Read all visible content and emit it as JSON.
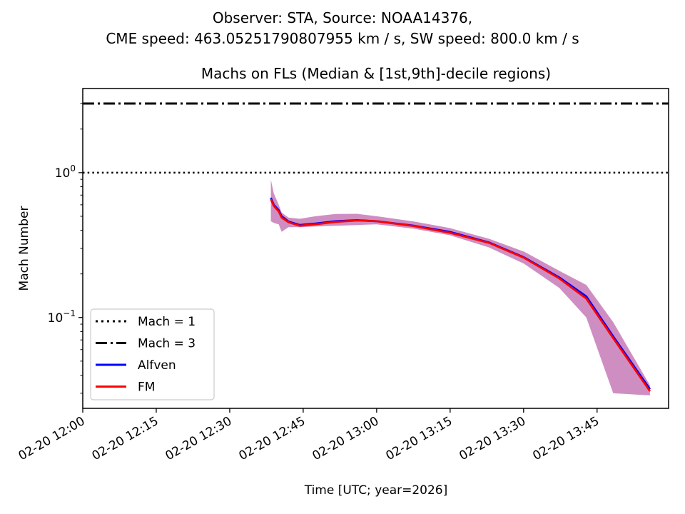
{
  "chart_data": {
    "type": "line",
    "suptitle_lines": [
      "Observer: STA, Source: NOAA14376,",
      "CME speed: 463.05251790807955 km / s, SW speed: 800.0 km / s"
    ],
    "title": "Machs on FLs (Median & [1st,9th]-decile regions)",
    "xlabel": "Time [UTC; year=2026]",
    "ylabel": "Mach Number",
    "yscale": "log",
    "xlim_minutes_after_1200": [
      0,
      119.6
    ],
    "ylim": [
      0.0236,
      3.81
    ],
    "x_ticks": [
      {
        "minutes": 0,
        "label": "02-20 12:00"
      },
      {
        "minutes": 15,
        "label": "02-20 12:15"
      },
      {
        "minutes": 30,
        "label": "02-20 12:30"
      },
      {
        "minutes": 45,
        "label": "02-20 12:45"
      },
      {
        "minutes": 60,
        "label": "02-20 13:00"
      },
      {
        "minutes": 75,
        "label": "02-20 13:15"
      },
      {
        "minutes": 90,
        "label": "02-20 13:30"
      },
      {
        "minutes": 105,
        "label": "02-20 13:45"
      }
    ],
    "y_ticks": [
      {
        "value": 1,
        "base": "10",
        "exp": "0"
      },
      {
        "value": 0.1,
        "base": "10",
        "exp": "−1"
      }
    ],
    "reference_lines": [
      {
        "name": "Mach = 1",
        "value": 1,
        "style": "dotted",
        "color": "#000000"
      },
      {
        "name": "Mach = 3",
        "value": 3,
        "style": "dashdot",
        "color": "#000000"
      }
    ],
    "x_minutes": [
      38.4,
      39.0,
      40.0,
      40.6,
      42.0,
      44.3,
      47.5,
      51.6,
      56.0,
      60.0,
      67.6,
      74.9,
      82.9,
      90.1,
      97.3,
      102.8,
      108.3,
      115.8
    ],
    "series": [
      {
        "name": "Alfven",
        "color": "#0000ff",
        "median": [
          0.67,
          0.6,
          0.55,
          0.5,
          0.46,
          0.435,
          0.445,
          0.462,
          0.47,
          0.462,
          0.43,
          0.39,
          0.33,
          0.26,
          0.189,
          0.14,
          0.074,
          0.032
        ]
      },
      {
        "name": "FM",
        "color": "#ff0000",
        "median": [
          0.657,
          0.59,
          0.54,
          0.49,
          0.455,
          0.43,
          0.44,
          0.457,
          0.468,
          0.462,
          0.428,
          0.385,
          0.328,
          0.258,
          0.186,
          0.135,
          0.072,
          0.031
        ]
      }
    ],
    "band": {
      "label": "[1st,9th]-decile region",
      "color": "#cc88bf",
      "upper": [
        0.893,
        0.72,
        0.6,
        0.53,
        0.49,
        0.48,
        0.5,
        0.518,
        0.52,
        0.5,
        0.46,
        0.415,
        0.35,
        0.285,
        0.21,
        0.168,
        0.093,
        0.034
      ],
      "lower": [
        0.462,
        0.45,
        0.44,
        0.39,
        0.42,
        0.42,
        0.425,
        0.43,
        0.435,
        0.44,
        0.41,
        0.37,
        0.305,
        0.235,
        0.16,
        0.1,
        0.03,
        0.029
      ]
    },
    "legend": {
      "placement": "lower-left",
      "entries": [
        {
          "label": "Mach = 1",
          "style": "dotted",
          "color": "#000000"
        },
        {
          "label": "Mach = 3",
          "style": "dashdot",
          "color": "#000000"
        },
        {
          "label": "Alfven",
          "style": "solid",
          "color": "#0000ff"
        },
        {
          "label": "FM",
          "style": "solid",
          "color": "#ff0000"
        }
      ]
    },
    "grid": false
  }
}
